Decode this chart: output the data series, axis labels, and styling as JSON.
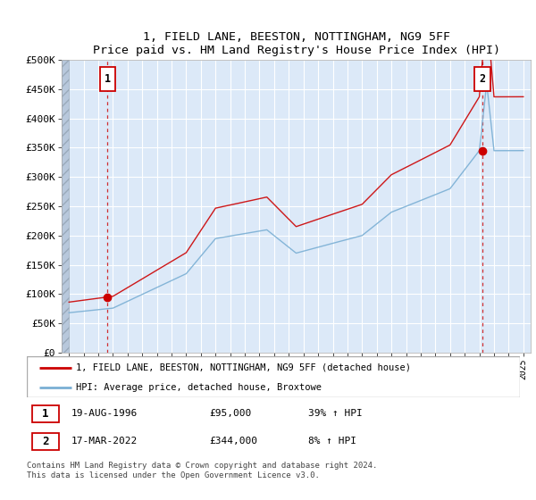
{
  "title": "1, FIELD LANE, BEESTON, NOTTINGHAM, NG9 5FF",
  "subtitle": "Price paid vs. HM Land Registry's House Price Index (HPI)",
  "legend_line1": "1, FIELD LANE, BEESTON, NOTTINGHAM, NG9 5FF (detached house)",
  "legend_line2": "HPI: Average price, detached house, Broxtowe",
  "transaction1": {
    "num": 1,
    "date": "19-AUG-1996",
    "price": "£95,000",
    "pct": "39% ↑ HPI",
    "year": 1996.63,
    "price_val": 95000
  },
  "transaction2": {
    "num": 2,
    "date": "17-MAR-2022",
    "price": "£344,000",
    "pct": "8% ↑ HPI",
    "year": 2022.21,
    "price_val": 344000
  },
  "footnote": "Contains HM Land Registry data © Crown copyright and database right 2024.\nThis data is licensed under the Open Government Licence v3.0.",
  "ylim": [
    0,
    500000
  ],
  "yticks": [
    0,
    50000,
    100000,
    150000,
    200000,
    250000,
    300000,
    350000,
    400000,
    450000,
    500000
  ],
  "ytick_labels": [
    "£0",
    "£50K",
    "£100K",
    "£150K",
    "£200K",
    "£250K",
    "£300K",
    "£350K",
    "£400K",
    "£450K",
    "£500K"
  ],
  "xlim_start": 1993.5,
  "xlim_end": 2025.5,
  "plot_bg_color": "#dce9f8",
  "grid_color": "#ffffff",
  "hatch_color": "#b8c8dc",
  "red_color": "#cc0000",
  "blue_color": "#7aafd4",
  "t1_year": 1996.63,
  "t2_year": 2022.21,
  "hpi_base_year": 1994.0,
  "hpi_base_value": 68000,
  "t1_price": 95000,
  "t2_price": 344000
}
